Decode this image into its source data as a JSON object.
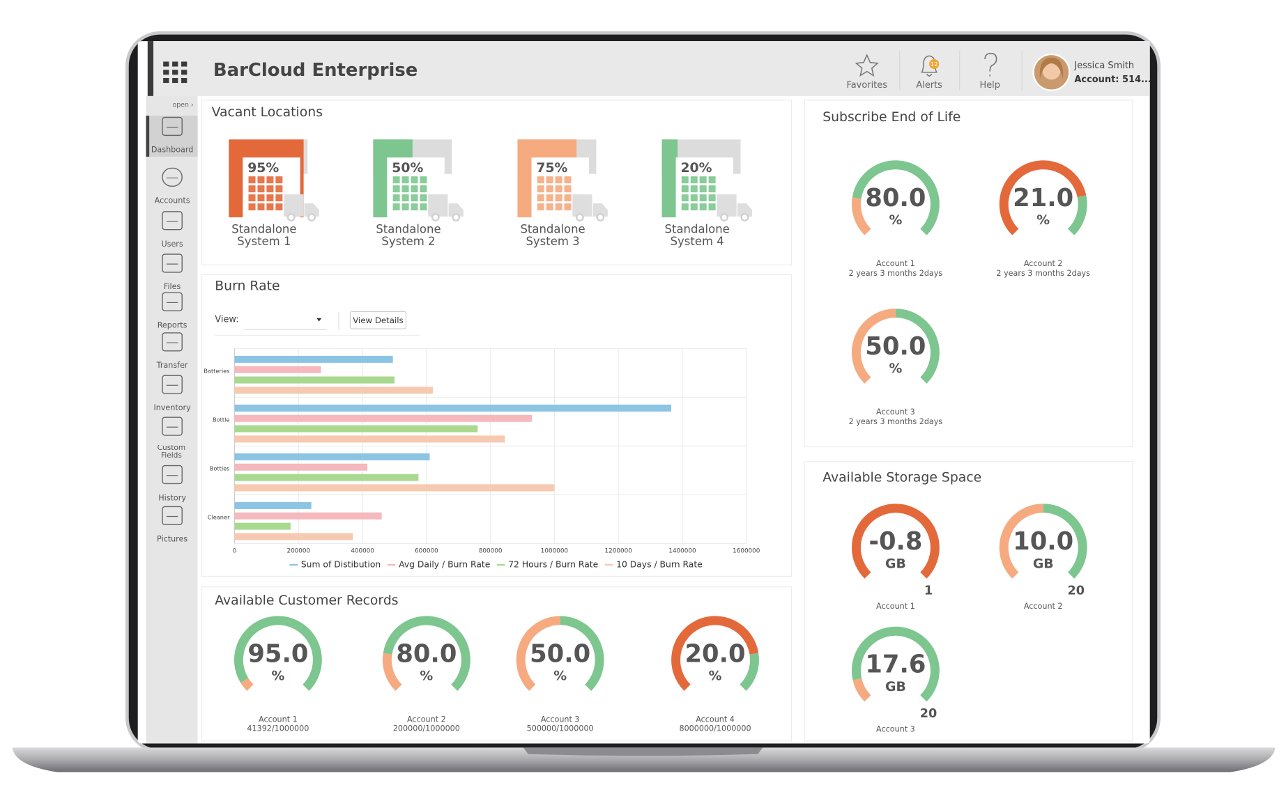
{
  "header": {
    "title": "BarCloud Enterprise",
    "favorites": "Favorites",
    "alerts": "Alerts",
    "alert_count": 12,
    "help": "Help",
    "user_name": "Jessica Smith",
    "account": "Account: 514..."
  },
  "sidebar": {
    "toggle": "open ›",
    "items": [
      "Dashboard",
      "Accounts",
      "Users",
      "Files",
      "Reports",
      "Transfer",
      "Inventory",
      "Custom Fields",
      "History",
      "Pictures"
    ]
  },
  "vacant_locations": {
    "title": "Vacant Locations",
    "systems": [
      {
        "label": "Standalone System 1",
        "value": 95,
        "value_label": "95%",
        "color": "#e3693b"
      },
      {
        "label": "Standalone System 2",
        "value": 50,
        "value_label": "50%",
        "color": "#7dc68f"
      },
      {
        "label": "Standalone System 3",
        "value": 75,
        "value_label": "75%",
        "color": "#f5aa80"
      },
      {
        "label": "Standalone System 4",
        "value": 20,
        "value_label": "20%",
        "color": "#7dc68f"
      }
    ]
  },
  "burn_rate": {
    "title": "Burn Rate",
    "view_label": "View:",
    "button": "View Details"
  },
  "chart_data": {
    "type": "bar",
    "categories": [
      "Batteries",
      "Bottle",
      "Bottles",
      "Cleaner"
    ],
    "series": [
      {
        "name": "Sum of Distibution",
        "color": "#8cc4e3",
        "values": [
          495000,
          1365000,
          610000,
          240000
        ]
      },
      {
        "name": "Avg Daily / Burn Rate",
        "color": "#f4b8bd",
        "values": [
          270000,
          930000,
          415000,
          460000
        ]
      },
      {
        "name": "72 Hours / Burn Rate",
        "color": "#a8d98f",
        "values": [
          500000,
          760000,
          575000,
          175000
        ]
      },
      {
        "name": "10 Days / Burn Rate",
        "color": "#f6c9b0",
        "values": [
          620000,
          845000,
          1000000,
          370000
        ]
      }
    ],
    "xlim": [
      0,
      1600000
    ],
    "xticks": [
      0,
      200000,
      400000,
      600000,
      800000,
      1000000,
      1200000,
      1400000,
      1600000
    ],
    "grid": true,
    "legend": "bottom"
  },
  "customer_records": {
    "title": "Available Customer Records",
    "unit": "%",
    "gauges": [
      {
        "value": 95,
        "value_label": "95.0",
        "label": "Account 1",
        "detail": "41392/1000000",
        "colors": [
          "#f5aa80",
          "#7dc68f"
        ]
      },
      {
        "value": 80,
        "value_label": "80.0",
        "label": "Account 2",
        "detail": "200000/1000000",
        "colors": [
          "#f5aa80",
          "#7dc68f"
        ]
      },
      {
        "value": 50,
        "value_label": "50.0",
        "label": "Account 3",
        "detail": "500000/1000000",
        "colors": [
          "#f5aa80",
          "#7dc68f"
        ]
      },
      {
        "value": 20,
        "value_label": "20.0",
        "label": "Account 4",
        "detail": "8000000/1000000",
        "colors": [
          "#e3693b",
          "#7dc68f"
        ]
      }
    ]
  },
  "subscribe_end_of_life": {
    "title": "Subscribe End of Life",
    "unit": "%",
    "gauges": [
      {
        "value": 80,
        "value_label": "80.0",
        "label": "Account 1",
        "detail": "2 years 3 months 2days",
        "colors": [
          "#f5aa80",
          "#7dc68f"
        ]
      },
      {
        "value": 21,
        "value_label": "21.0",
        "label": "Account 2",
        "detail": "2 years 3 months 2days",
        "colors": [
          "#e3693b",
          "#7dc68f"
        ]
      },
      {
        "value": 50,
        "value_label": "50.0",
        "label": "Account 3",
        "detail": "2 years 3 months 2days",
        "colors": [
          "#f5aa80",
          "#7dc68f"
        ]
      }
    ]
  },
  "storage_space": {
    "title": "Available Storage Space",
    "unit": "GB",
    "gauges": [
      {
        "value": -0.8,
        "value_label": "-0.8",
        "max": 1,
        "label": "Account 1",
        "colors": [
          "#e3693b",
          "#7dc68f"
        ]
      },
      {
        "value": 10,
        "value_label": "10.0",
        "max": 20,
        "label": "Account 2",
        "colors": [
          "#f5aa80",
          "#7dc68f"
        ]
      },
      {
        "value": 17.6,
        "value_label": "17.6",
        "max": 20,
        "label": "Account 3",
        "colors": [
          "#f5aa80",
          "#7dc68f"
        ]
      }
    ]
  }
}
